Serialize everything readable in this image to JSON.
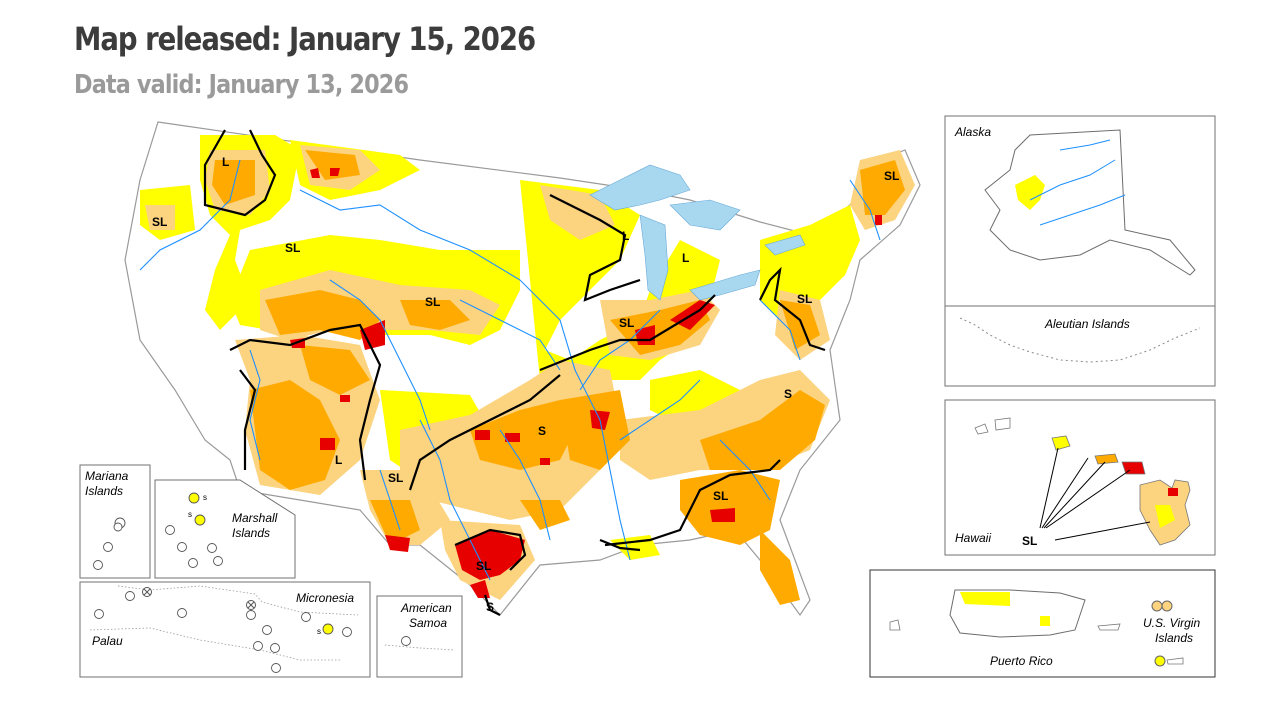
{
  "header": {
    "title": "Map released: January 15, 2026",
    "subtitle": "Data valid: January 13, 2026"
  },
  "colors": {
    "d0": "#ffff00",
    "d1": "#fcd37f",
    "d2": "#ffaa00",
    "d3": "#e60000",
    "water": "#a7d8f0",
    "rivers": "#1e90ff",
    "borders": "#9a9a9a",
    "impact_lines": "#000000"
  },
  "insets": {
    "alaska": "Alaska",
    "aleutian": "Aleutian Islands",
    "hawaii": "Hawaii",
    "puerto_rico": "Puerto Rico",
    "usvi_line1": "U.S. Virgin",
    "usvi_line2": "Islands",
    "mariana_line1": "Mariana",
    "mariana_line2": "Islands",
    "marshall_line1": "Marshall",
    "marshall_line2": "Islands",
    "micronesia": "Micronesia",
    "palau": "Palau",
    "samoa_line1": "American",
    "samoa_line2": "Samoa"
  },
  "impact_labels": {
    "sl": "SL",
    "l": "L",
    "s": "S",
    "s_small": "s"
  }
}
